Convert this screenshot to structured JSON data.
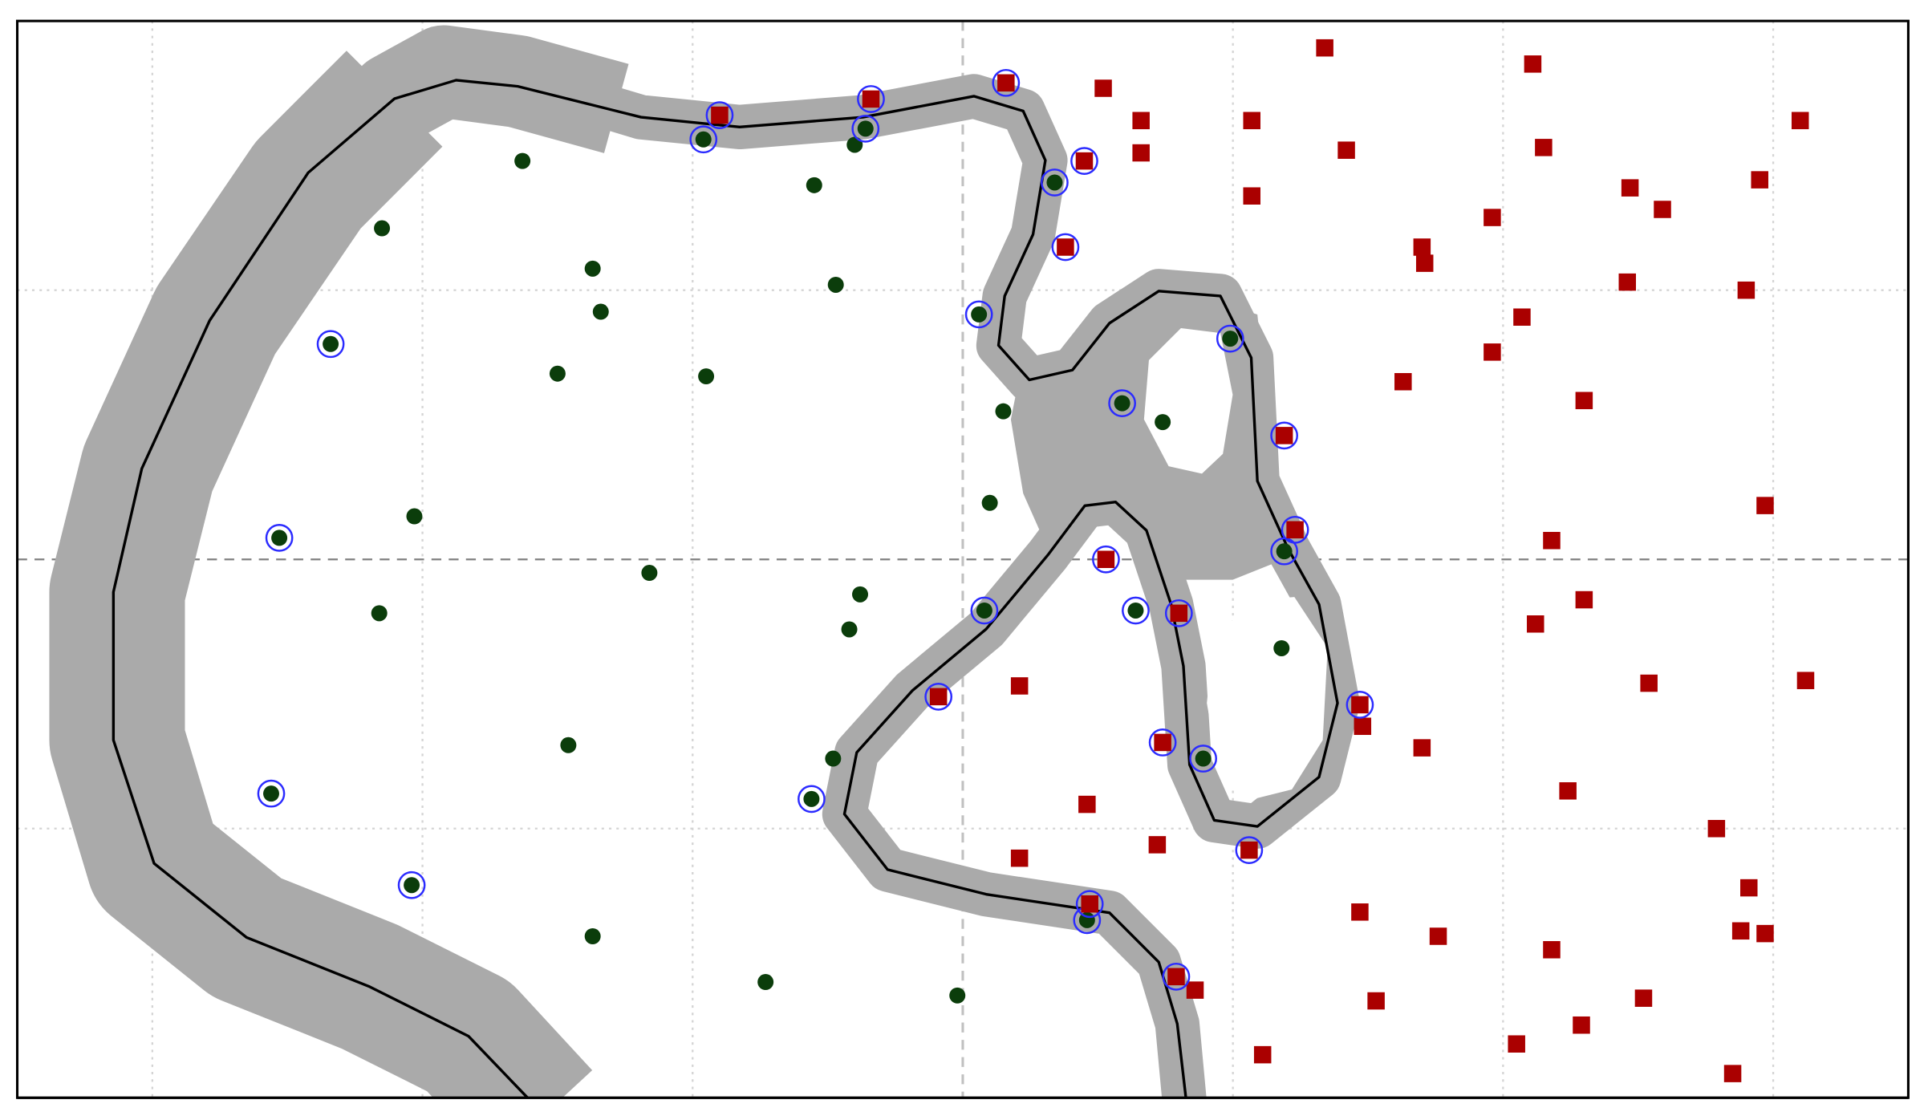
{
  "chart_data": {
    "type": "scatter",
    "grid": true,
    "xlim": [
      -3.5,
      3.5
    ],
    "ylim": [
      -2,
      2
    ],
    "xticks": [
      -3,
      -2,
      -1,
      0,
      1,
      2,
      3
    ],
    "yticks": [
      -1,
      0,
      1
    ],
    "series": [
      {
        "color": "#0b3d0b",
        "marker": "circle",
        "ring": false,
        "x": [
          -1.63,
          -2.15,
          -1.37,
          -1.34,
          -1.5,
          -0.95,
          -0.55,
          -0.4,
          -0.47,
          0.15,
          0.1,
          0.74,
          -2.03,
          -1.16,
          -0.38,
          -0.42,
          -2.16,
          -1.46,
          -0.48,
          1.18,
          -1.37,
          -0.73,
          -0.02
        ],
        "values": [
          1.48,
          1.23,
          1.08,
          0.92,
          0.69,
          0.68,
          1.39,
          1.54,
          1.02,
          0.55,
          0.21,
          0.51,
          0.16,
          -0.05,
          -0.13,
          -0.26,
          -0.2,
          -0.69,
          -0.74,
          -0.33,
          -1.4,
          -1.57,
          -1.62
        ]
      },
      {
        "color": "#0b3d0b",
        "marker": "circle",
        "ring": true,
        "x": [
          -0.96,
          -0.36,
          -2.34,
          -2.53,
          -2.56,
          -2.04,
          0.34,
          0.06,
          0.59,
          0.99,
          1.19,
          0.08,
          0.64,
          0.89,
          -0.56,
          0.46
        ],
        "values": [
          1.56,
          1.6,
          0.8,
          0.08,
          -0.87,
          -1.21,
          1.4,
          0.91,
          0.58,
          0.82,
          0.03,
          -0.19,
          -0.19,
          -0.74,
          -0.89,
          -1.34
        ]
      },
      {
        "color": "#aa0000",
        "marker": "square",
        "ring": false,
        "x": [
          1.34,
          0.52,
          2.11,
          0.66,
          1.07,
          0.66,
          1.42,
          2.15,
          3.1,
          1.07,
          1.96,
          2.47,
          2.59,
          2.95,
          1.7,
          1.71,
          2.46,
          2.9,
          2.07,
          1.96,
          1.63,
          2.3,
          2.97,
          2.18,
          2.3,
          2.12,
          2.54,
          3.12,
          0.21,
          1.48,
          1.7,
          2.24,
          0.46,
          0.72,
          0.21,
          2.79,
          2.91,
          1.47,
          1.76,
          2.18,
          2.88,
          2.97,
          0.86,
          1.53,
          2.52,
          2.29,
          2.05,
          1.11,
          2.85
        ],
        "values": [
          1.9,
          1.75,
          1.84,
          1.63,
          1.63,
          1.51,
          1.52,
          1.53,
          1.63,
          1.35,
          1.27,
          1.38,
          1.3,
          1.41,
          1.16,
          1.1,
          1.03,
          1.0,
          0.9,
          0.77,
          0.66,
          0.59,
          0.2,
          0.07,
          -0.15,
          -0.24,
          -0.46,
          -0.45,
          -0.47,
          -0.62,
          -0.7,
          -0.86,
          -0.91,
          -1.06,
          -1.11,
          -1.0,
          -1.22,
          -1.31,
          -1.4,
          -1.45,
          -1.38,
          -1.39,
          -1.6,
          -1.64,
          -1.63,
          -1.73,
          -1.8,
          -1.84,
          -1.91
        ]
      },
      {
        "color": "#aa0000",
        "marker": "square",
        "ring": true,
        "x": [
          -0.9,
          -0.34,
          0.16,
          0.45,
          0.38,
          1.19,
          1.23,
          0.53,
          0.8,
          1.47,
          -0.09,
          0.74,
          1.06,
          0.47,
          0.79
        ],
        "values": [
          1.65,
          1.71,
          1.77,
          1.48,
          1.16,
          0.46,
          0.11,
          0,
          -0.2,
          -0.54,
          -0.51,
          -0.68,
          -1.08,
          -1.28,
          -1.55
        ]
      }
    ]
  }
}
